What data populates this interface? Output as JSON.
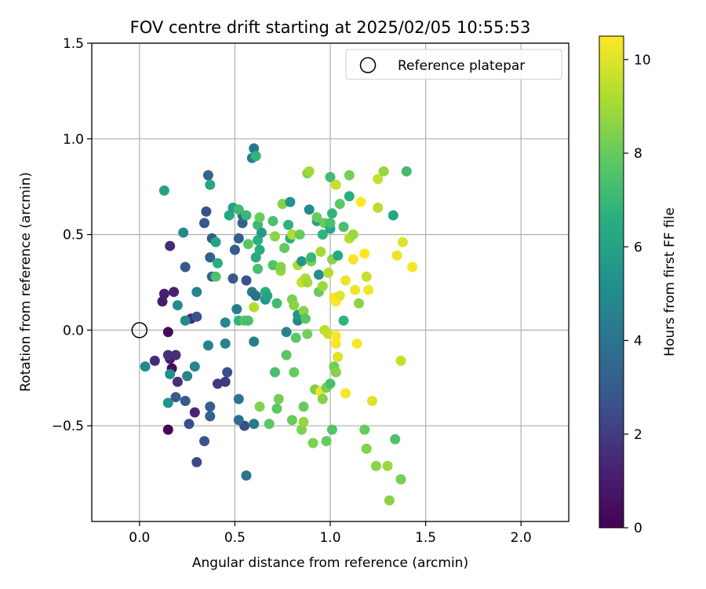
{
  "chart_data": {
    "type": "scatter",
    "title": "FOV centre drift starting at 2025/02/05 10:55:53",
    "xlabel": "Angular distance from reference (arcmin)",
    "ylabel": "Rotation from reference (arcmin)",
    "xlim": [
      -0.25,
      2.25
    ],
    "ylim": [
      -1.0,
      1.5
    ],
    "xticks": [
      0.0,
      0.5,
      1.0,
      1.5,
      2.0
    ],
    "xtick_labels": [
      "0.0",
      "0.5",
      "1.0",
      "1.5",
      "2.0"
    ],
    "yticks": [
      -0.5,
      0.0,
      0.5,
      1.0,
      1.5
    ],
    "ytick_labels": [
      "−0.5",
      "0.0",
      "0.5",
      "1.0",
      "1.5"
    ],
    "grid": true,
    "legend": {
      "position": "top-right",
      "entries": [
        "Reference platepar"
      ]
    },
    "reference_point": {
      "x": 0.0,
      "y": 0.0,
      "label": "Reference platepar"
    },
    "colorbar": {
      "label": "Hours from first FF file",
      "colormap": "viridis",
      "range": [
        0,
        10.5
      ],
      "ticks": [
        0,
        2,
        4,
        6,
        8,
        10
      ],
      "tick_labels": [
        "0",
        "2",
        "4",
        "6",
        "8",
        "10"
      ]
    },
    "points": [
      {
        "x": 0.15,
        "y": -0.52,
        "c": 0.2
      },
      {
        "x": 0.15,
        "y": -0.01,
        "c": 0.3
      },
      {
        "x": 0.17,
        "y": -0.2,
        "c": 0.4
      },
      {
        "x": 0.12,
        "y": 0.15,
        "c": 1.0
      },
      {
        "x": 0.13,
        "y": 0.19,
        "c": 1.1
      },
      {
        "x": 0.18,
        "y": 0.2,
        "c": 1.2
      },
      {
        "x": 0.16,
        "y": -0.15,
        "c": 1.0
      },
      {
        "x": 0.08,
        "y": -0.16,
        "c": 1.5
      },
      {
        "x": 0.2,
        "y": -0.27,
        "c": 1.6
      },
      {
        "x": 0.16,
        "y": 0.44,
        "c": 1.5
      },
      {
        "x": 0.19,
        "y": -0.13,
        "c": 1.6
      },
      {
        "x": 0.15,
        "y": -0.13,
        "c": 1.7
      },
      {
        "x": 0.29,
        "y": -0.43,
        "c": 1.3
      },
      {
        "x": 0.27,
        "y": 0.06,
        "c": 1.4
      },
      {
        "x": 0.26,
        "y": -0.49,
        "c": 2.5
      },
      {
        "x": 0.3,
        "y": -0.69,
        "c": 2.4
      },
      {
        "x": 0.34,
        "y": -0.58,
        "c": 2.7
      },
      {
        "x": 0.3,
        "y": 0.07,
        "c": 2.6
      },
      {
        "x": 0.24,
        "y": 0.33,
        "c": 2.8
      },
      {
        "x": 0.24,
        "y": -0.37,
        "c": 3.0
      },
      {
        "x": 0.19,
        "y": -0.35,
        "c": 2.9
      },
      {
        "x": 0.37,
        "y": -0.4,
        "c": 3.1
      },
      {
        "x": 0.41,
        "y": -0.28,
        "c": 2.0
      },
      {
        "x": 0.45,
        "y": -0.27,
        "c": 1.9
      },
      {
        "x": 0.46,
        "y": -0.22,
        "c": 2.6
      },
      {
        "x": 0.37,
        "y": -0.45,
        "c": 3.2
      },
      {
        "x": 0.34,
        "y": 0.56,
        "c": 2.8
      },
      {
        "x": 0.35,
        "y": 0.62,
        "c": 2.6
      },
      {
        "x": 0.36,
        "y": 0.81,
        "c": 3.3
      },
      {
        "x": 0.37,
        "y": 0.38,
        "c": 3.2
      },
      {
        "x": 0.38,
        "y": 0.48,
        "c": 3.0
      },
      {
        "x": 0.38,
        "y": 0.28,
        "c": 3.4
      },
      {
        "x": 0.49,
        "y": 0.27,
        "c": 2.9
      },
      {
        "x": 0.52,
        "y": 0.48,
        "c": 3.1
      },
      {
        "x": 0.5,
        "y": 0.42,
        "c": 3.0
      },
      {
        "x": 0.54,
        "y": 0.56,
        "c": 3.3
      },
      {
        "x": 0.55,
        "y": -0.5,
        "c": 2.5
      },
      {
        "x": 0.56,
        "y": 0.26,
        "c": 2.6
      },
      {
        "x": 0.52,
        "y": -0.47,
        "c": 3.8
      },
      {
        "x": 0.56,
        "y": -0.76,
        "c": 4.1
      },
      {
        "x": 0.52,
        "y": -0.36,
        "c": 4.0
      },
      {
        "x": 0.54,
        "y": 0.6,
        "c": 3.6
      },
      {
        "x": 0.6,
        "y": 0.95,
        "c": 4.2
      },
      {
        "x": 0.59,
        "y": 0.9,
        "c": 4.5
      },
      {
        "x": 0.59,
        "y": 0.2,
        "c": 4.3
      },
      {
        "x": 0.61,
        "y": 0.18,
        "c": 3.8
      },
      {
        "x": 0.6,
        "y": -0.06,
        "c": 4.5
      },
      {
        "x": 0.6,
        "y": -0.49,
        "c": 4.2
      },
      {
        "x": 0.45,
        "y": -0.07,
        "c": 4.6
      },
      {
        "x": 0.45,
        "y": 0.04,
        "c": 4.8
      },
      {
        "x": 0.51,
        "y": 0.11,
        "c": 4.4
      },
      {
        "x": 0.36,
        "y": -0.08,
        "c": 4.6
      },
      {
        "x": 0.29,
        "y": -0.19,
        "c": 4.8
      },
      {
        "x": 0.3,
        "y": 0.2,
        "c": 4.7
      },
      {
        "x": 0.25,
        "y": -0.24,
        "c": 4.7
      },
      {
        "x": 0.24,
        "y": 0.05,
        "c": 5.0
      },
      {
        "x": 0.23,
        "y": 0.51,
        "c": 4.9
      },
      {
        "x": 0.16,
        "y": -0.23,
        "c": 5.2
      },
      {
        "x": 0.15,
        "y": -0.38,
        "c": 5.3
      },
      {
        "x": 0.2,
        "y": 0.13,
        "c": 5.1
      },
      {
        "x": 0.03,
        "y": -0.19,
        "c": 5.0
      },
      {
        "x": 0.13,
        "y": 0.73,
        "c": 6.0
      },
      {
        "x": 0.37,
        "y": 0.76,
        "c": 6.2
      },
      {
        "x": 0.4,
        "y": 0.46,
        "c": 6.1
      },
      {
        "x": 0.41,
        "y": 0.35,
        "c": 6.5
      },
      {
        "x": 0.4,
        "y": 0.28,
        "c": 7.5
      },
      {
        "x": 0.47,
        "y": 0.6,
        "c": 6.3
      },
      {
        "x": 0.49,
        "y": 0.64,
        "c": 6.0
      },
      {
        "x": 0.52,
        "y": 0.05,
        "c": 6.8
      },
      {
        "x": 0.55,
        "y": 0.05,
        "c": 7.6
      },
      {
        "x": 0.57,
        "y": 0.05,
        "c": 7.4
      },
      {
        "x": 0.52,
        "y": 0.63,
        "c": 7.2
      },
      {
        "x": 0.56,
        "y": 0.6,
        "c": 7.0
      },
      {
        "x": 0.57,
        "y": 0.45,
        "c": 7.8
      },
      {
        "x": 0.61,
        "y": 0.38,
        "c": 6.4
      },
      {
        "x": 0.62,
        "y": 0.55,
        "c": 7.1
      },
      {
        "x": 0.63,
        "y": 0.42,
        "c": 6.5
      },
      {
        "x": 0.62,
        "y": 0.47,
        "c": 6.6
      },
      {
        "x": 0.61,
        "y": 0.91,
        "c": 6.8
      },
      {
        "x": 0.62,
        "y": 0.32,
        "c": 7.4
      },
      {
        "x": 0.6,
        "y": 0.12,
        "c": 9.3
      },
      {
        "x": 0.63,
        "y": -0.4,
        "c": 8.5
      },
      {
        "x": 0.63,
        "y": 0.59,
        "c": 8.0
      },
      {
        "x": 0.66,
        "y": 0.2,
        "c": 6.6
      },
      {
        "x": 0.66,
        "y": 0.16,
        "c": 5.5
      },
      {
        "x": 0.67,
        "y": 0.18,
        "c": 6.0
      },
      {
        "x": 0.64,
        "y": 0.51,
        "c": 5.8
      },
      {
        "x": 0.68,
        "y": -0.49,
        "c": 7.8
      },
      {
        "x": 0.7,
        "y": 0.34,
        "c": 7.6
      },
      {
        "x": 0.7,
        "y": 0.57,
        "c": 7.4
      },
      {
        "x": 0.72,
        "y": 0.14,
        "c": 7.2
      },
      {
        "x": 0.72,
        "y": -0.41,
        "c": 7.8
      },
      {
        "x": 0.71,
        "y": -0.22,
        "c": 7.4
      },
      {
        "x": 0.73,
        "y": -0.36,
        "c": 8.2
      },
      {
        "x": 0.71,
        "y": 0.49,
        "c": 8.6
      },
      {
        "x": 0.74,
        "y": 0.31,
        "c": 8.8
      },
      {
        "x": 0.74,
        "y": 0.33,
        "c": 8.5
      },
      {
        "x": 0.75,
        "y": 0.66,
        "c": 8.5
      },
      {
        "x": 0.76,
        "y": 0.43,
        "c": 7.9
      },
      {
        "x": 0.77,
        "y": -0.13,
        "c": 7.8
      },
      {
        "x": 0.77,
        "y": -0.01,
        "c": 4.7
      },
      {
        "x": 0.79,
        "y": 0.67,
        "c": 5.3
      },
      {
        "x": 0.79,
        "y": 0.48,
        "c": 6.6
      },
      {
        "x": 0.78,
        "y": 0.55,
        "c": 6.8
      },
      {
        "x": 0.8,
        "y": -0.47,
        "c": 8.0
      },
      {
        "x": 0.8,
        "y": 0.16,
        "c": 8.3
      },
      {
        "x": 0.8,
        "y": 0.5,
        "c": 9.2
      },
      {
        "x": 0.81,
        "y": -0.22,
        "c": 8.0
      },
      {
        "x": 0.82,
        "y": -0.04,
        "c": 7.8
      },
      {
        "x": 0.81,
        "y": 0.13,
        "c": 8.6
      },
      {
        "x": 0.83,
        "y": 0.05,
        "c": 4.8
      },
      {
        "x": 0.83,
        "y": 0.08,
        "c": 5.5
      },
      {
        "x": 0.83,
        "y": 0.34,
        "c": 9.2
      },
      {
        "x": 0.84,
        "y": 0.5,
        "c": 8.0
      },
      {
        "x": 0.85,
        "y": 0.36,
        "c": 5.6
      },
      {
        "x": 0.85,
        "y": -0.52,
        "c": 8.4
      },
      {
        "x": 0.86,
        "y": -0.48,
        "c": 8.8
      },
      {
        "x": 0.85,
        "y": 0.25,
        "c": 9.6
      },
      {
        "x": 0.86,
        "y": -0.4,
        "c": 8.0
      },
      {
        "x": 0.86,
        "y": 0.1,
        "c": 8.6
      },
      {
        "x": 0.87,
        "y": 0.27,
        "c": 9.2
      },
      {
        "x": 0.87,
        "y": 0.06,
        "c": 7.7
      },
      {
        "x": 0.88,
        "y": -0.02,
        "c": 8.2
      },
      {
        "x": 0.88,
        "y": 0.25,
        "c": 9.0
      },
      {
        "x": 0.88,
        "y": 0.82,
        "c": 8.4
      },
      {
        "x": 0.89,
        "y": 0.83,
        "c": 9.0
      },
      {
        "x": 0.89,
        "y": 0.63,
        "c": 5.0
      },
      {
        "x": 0.9,
        "y": 0.36,
        "c": 8.3
      },
      {
        "x": 0.9,
        "y": 0.38,
        "c": 7.0
      },
      {
        "x": 0.91,
        "y": -0.59,
        "c": 8.4
      },
      {
        "x": 0.92,
        "y": -0.31,
        "c": 8.4
      },
      {
        "x": 0.93,
        "y": 0.57,
        "c": 6.0
      },
      {
        "x": 0.93,
        "y": 0.59,
        "c": 8.0
      },
      {
        "x": 0.94,
        "y": 0.2,
        "c": 8.0
      },
      {
        "x": 0.94,
        "y": 0.29,
        "c": 5.2
      },
      {
        "x": 0.95,
        "y": -0.32,
        "c": 10.3
      },
      {
        "x": 0.95,
        "y": 0.41,
        "c": 9.0
      },
      {
        "x": 0.96,
        "y": 0.23,
        "c": 8.9
      },
      {
        "x": 0.96,
        "y": 0.5,
        "c": 6.8
      },
      {
        "x": 0.96,
        "y": -0.36,
        "c": 8.5
      },
      {
        "x": 0.97,
        "y": 0.0,
        "c": 9.4
      },
      {
        "x": 0.97,
        "y": 0.56,
        "c": 8.0
      },
      {
        "x": 0.98,
        "y": -0.58,
        "c": 8.0
      },
      {
        "x": 0.98,
        "y": -0.3,
        "c": 8.2
      },
      {
        "x": 0.99,
        "y": -0.02,
        "c": 9.6
      },
      {
        "x": 0.99,
        "y": 0.3,
        "c": 9.3
      },
      {
        "x": 1.0,
        "y": 0.53,
        "c": 6.2
      },
      {
        "x": 1.0,
        "y": 0.56,
        "c": 7.4
      },
      {
        "x": 1.0,
        "y": -0.28,
        "c": 7.4
      },
      {
        "x": 1.0,
        "y": 0.8,
        "c": 7.2
      },
      {
        "x": 1.01,
        "y": -0.52,
        "c": 7.6
      },
      {
        "x": 1.01,
        "y": 0.37,
        "c": 8.6
      },
      {
        "x": 1.01,
        "y": 0.61,
        "c": 6.8
      },
      {
        "x": 1.02,
        "y": -0.19,
        "c": 8.2
      },
      {
        "x": 1.02,
        "y": 0.17,
        "c": 10.4
      },
      {
        "x": 1.03,
        "y": 0.76,
        "c": 9.6
      },
      {
        "x": 1.03,
        "y": -0.07,
        "c": 10.4
      },
      {
        "x": 1.03,
        "y": 0.15,
        "c": 10.5
      },
      {
        "x": 1.03,
        "y": -0.03,
        "c": 10.5
      },
      {
        "x": 1.03,
        "y": -0.22,
        "c": 8.5
      },
      {
        "x": 1.04,
        "y": 0.39,
        "c": 6.4
      },
      {
        "x": 1.04,
        "y": -0.14,
        "c": 10.0
      },
      {
        "x": 1.05,
        "y": 0.66,
        "c": 7.8
      },
      {
        "x": 1.05,
        "y": 0.18,
        "c": 10.0
      },
      {
        "x": 1.07,
        "y": 0.54,
        "c": 7.4
      },
      {
        "x": 1.07,
        "y": 0.05,
        "c": 6.8
      },
      {
        "x": 1.08,
        "y": -0.33,
        "c": 10.4
      },
      {
        "x": 1.08,
        "y": 0.26,
        "c": 10.3
      },
      {
        "x": 1.1,
        "y": 0.48,
        "c": 9.3
      },
      {
        "x": 1.1,
        "y": 0.81,
        "c": 8.2
      },
      {
        "x": 1.1,
        "y": 0.7,
        "c": 6.6
      },
      {
        "x": 1.12,
        "y": 0.5,
        "c": 8.9
      },
      {
        "x": 1.12,
        "y": 0.37,
        "c": 10.4
      },
      {
        "x": 1.13,
        "y": 0.21,
        "c": 10.3
      },
      {
        "x": 1.14,
        "y": -0.07,
        "c": 10.4
      },
      {
        "x": 1.15,
        "y": 0.14,
        "c": 8.6
      },
      {
        "x": 1.16,
        "y": 0.67,
        "c": 10.5
      },
      {
        "x": 1.18,
        "y": -0.52,
        "c": 8.0
      },
      {
        "x": 1.18,
        "y": 0.4,
        "c": 10.5
      },
      {
        "x": 1.19,
        "y": -0.62,
        "c": 8.5
      },
      {
        "x": 1.19,
        "y": 0.28,
        "c": 9.6
      },
      {
        "x": 1.2,
        "y": 0.21,
        "c": 10.3
      },
      {
        "x": 1.22,
        "y": -0.37,
        "c": 10.0
      },
      {
        "x": 1.24,
        "y": -0.71,
        "c": 8.6
      },
      {
        "x": 1.25,
        "y": 0.79,
        "c": 9.6
      },
      {
        "x": 1.25,
        "y": 0.64,
        "c": 9.4
      },
      {
        "x": 1.28,
        "y": 0.83,
        "c": 8.8
      },
      {
        "x": 1.3,
        "y": -0.71,
        "c": 8.9
      },
      {
        "x": 1.31,
        "y": -0.89,
        "c": 8.6
      },
      {
        "x": 1.33,
        "y": 0.6,
        "c": 6.2
      },
      {
        "x": 1.34,
        "y": -0.57,
        "c": 7.5
      },
      {
        "x": 1.35,
        "y": 0.39,
        "c": 10.2
      },
      {
        "x": 1.37,
        "y": -0.16,
        "c": 9.6
      },
      {
        "x": 1.37,
        "y": -0.78,
        "c": 8.3
      },
      {
        "x": 1.38,
        "y": 0.46,
        "c": 10.0
      },
      {
        "x": 1.4,
        "y": 0.83,
        "c": 7.2
      },
      {
        "x": 1.43,
        "y": 0.33,
        "c": 10.4
      }
    ]
  }
}
